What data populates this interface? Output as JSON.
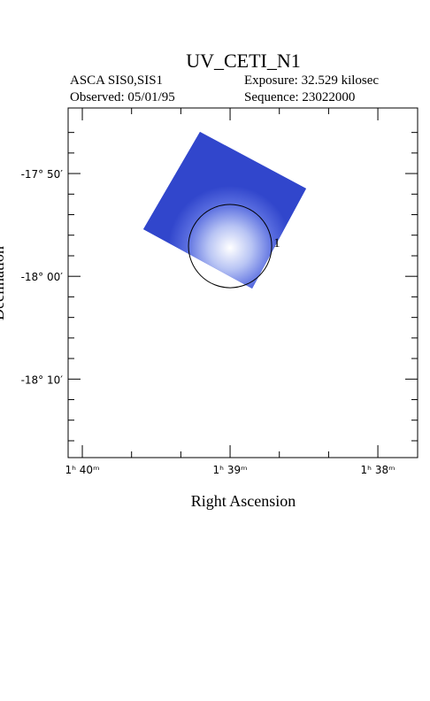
{
  "chart_data": {
    "type": "image",
    "title": "UV_CETI_N1",
    "instrument": "ASCA SIS0,SIS1",
    "exposure": "Exposure: 32.529 kilosec",
    "observed": "Observed: 05/01/95",
    "sequence": "Sequence: 23022000",
    "xlabel": "Right Ascension",
    "ylabel": "Declination",
    "xlim": [
      100.096,
      97.731
    ],
    "ylim": [
      -18.294,
      -17.727
    ],
    "xticks": [
      {
        "value": 100,
        "label": "1ʰ 40ᵐ"
      },
      {
        "value": 99,
        "label": "1ʰ 39ᵐ"
      },
      {
        "value": 98,
        "label": "1ʰ 38ᵐ"
      }
    ],
    "yticks": [
      {
        "value": -17.8333,
        "label": "-17° 50′"
      },
      {
        "value": -18,
        "label": "-18° 00′"
      },
      {
        "value": -18.1667,
        "label": "-18° 10′"
      }
    ],
    "xminorticks": [
      99.6667,
      99.3333,
      98.6667,
      98.3333
    ],
    "yminorticks": [
      -17.7667,
      -17.8,
      -17.8667,
      -17.9,
      -17.9333,
      -17.9667,
      -18.0333,
      -18.0667,
      -18.1,
      -18.1333,
      -18.2,
      -18.2333,
      -18.2667
    ],
    "source": {
      "label": "1",
      "ra": 99,
      "dec": -17.951,
      "radius_arcmin": 4.05
    }
  }
}
